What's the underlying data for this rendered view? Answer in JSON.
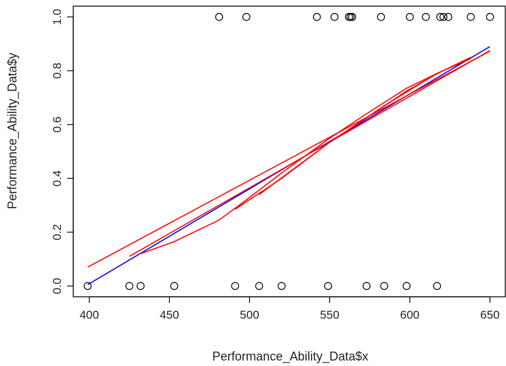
{
  "chart_data": {
    "type": "scatter",
    "title": "",
    "xlabel": "Performance_Ability_Data$x",
    "ylabel": "Performance_Ability_Data$y",
    "xlim": [
      390,
      660
    ],
    "ylim": [
      -0.04,
      1.04
    ],
    "xticks": [
      400,
      450,
      500,
      550,
      600,
      650
    ],
    "yticks": [
      0.0,
      0.2,
      0.4,
      0.6,
      0.8,
      1.0
    ],
    "ytick_labels": [
      "0.0",
      "0.2",
      "0.4",
      "0.6",
      "0.8",
      "1.0"
    ],
    "grid": false,
    "legend": "none",
    "points": {
      "x": [
        481,
        498,
        542,
        553,
        562,
        563,
        564,
        582,
        600,
        610,
        619,
        621,
        624,
        638,
        650,
        399,
        425,
        432,
        453,
        491,
        506,
        520,
        549,
        573,
        584,
        598,
        617
      ],
      "y": [
        1,
        1,
        1,
        1,
        1,
        1,
        1,
        1,
        1,
        1,
        1,
        1,
        1,
        1,
        1,
        0,
        0,
        0,
        0,
        0,
        0,
        0,
        0,
        0,
        0,
        0,
        0
      ],
      "marker": "open-circle",
      "color": "#000000"
    },
    "series": [
      {
        "color": "#0000ff",
        "x": [
          399,
          650
        ],
        "y": [
          0.005,
          0.89
        ]
      },
      {
        "color": "#ff0000",
        "x": [
          399,
          650
        ],
        "y": [
          0.07,
          0.873
        ]
      },
      {
        "color": "#ff0000",
        "x": [
          425,
          650
        ],
        "y": [
          0.11,
          0.875
        ]
      },
      {
        "color": "#ff0000",
        "x": [
          432,
          453,
          481,
          498,
          520,
          549,
          573,
          598,
          617,
          638
        ],
        "y": [
          0.12,
          0.165,
          0.245,
          0.32,
          0.42,
          0.545,
          0.64,
          0.735,
          0.79,
          0.845
        ]
      },
      {
        "color": "#ff0000",
        "x": [
          491,
          520,
          549,
          573,
          598,
          619,
          638
        ],
        "y": [
          0.285,
          0.4,
          0.53,
          0.625,
          0.725,
          0.795,
          0.85
        ]
      },
      {
        "color": "#ff0000",
        "x": [
          506,
          549,
          584,
          617
        ],
        "y": [
          0.34,
          0.53,
          0.67,
          0.79
        ]
      }
    ]
  }
}
